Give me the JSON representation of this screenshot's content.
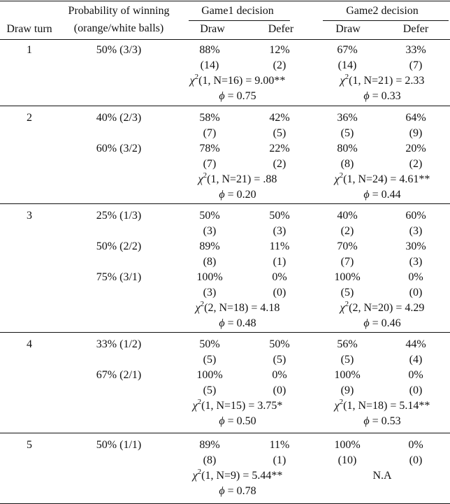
{
  "headers": {
    "draw_turn": "Draw turn",
    "prob_line1": "Probability of winning",
    "prob_line2": "(orange/white balls)",
    "game1": "Game1 decision",
    "game2": "Game2 decision",
    "draw": "Draw",
    "defer": "Defer"
  },
  "turns": [
    {
      "turn": "1",
      "rows": [
        {
          "prob": "50% (3/3)",
          "g1": [
            "88%",
            "12%",
            "(14)",
            "(2)"
          ],
          "g2": [
            "67%",
            "33%",
            "(14)",
            "(7)"
          ]
        }
      ],
      "g1_chi": {
        "df": "1",
        "n": "N=16",
        "val": "9.00**"
      },
      "g1_phi": "0.75",
      "g2_chi": {
        "df": "1",
        "n": "N=21",
        "val": "2.33"
      },
      "g2_phi": "0.33"
    },
    {
      "turn": "2",
      "rows": [
        {
          "prob": "40% (2/3)",
          "g1": [
            "58%",
            "42%",
            "(7)",
            "(5)"
          ],
          "g2": [
            "36%",
            "64%",
            "(5)",
            "(9)"
          ]
        },
        {
          "prob": "60% (3/2)",
          "g1": [
            "78%",
            "22%",
            "(7)",
            "(2)"
          ],
          "g2": [
            "80%",
            "20%",
            "(8)",
            "(2)"
          ]
        }
      ],
      "g1_chi": {
        "df": "1",
        "n": "N=21",
        "val": ".88"
      },
      "g1_phi": "0.20",
      "g2_chi": {
        "df": "1",
        "n": "N=24",
        "val": "4.61**"
      },
      "g2_phi": "0.44"
    },
    {
      "turn": "3",
      "rows": [
        {
          "prob": "25% (1/3)",
          "g1": [
            "50%",
            "50%",
            "(3)",
            "(3)"
          ],
          "g2": [
            "40%",
            "60%",
            "(2)",
            "(3)"
          ]
        },
        {
          "prob": "50% (2/2)",
          "g1": [
            "89%",
            "11%",
            "(8)",
            "(1)"
          ],
          "g2": [
            "70%",
            "30%",
            "(7)",
            "(3)"
          ]
        },
        {
          "prob": "75% (3/1)",
          "g1": [
            "100%",
            "0%",
            "(3)",
            "(0)"
          ],
          "g2": [
            "100%",
            "0%",
            "(5)",
            "(0)"
          ]
        }
      ],
      "g1_chi": {
        "df": "2",
        "n": "N=18",
        "val": "4.18"
      },
      "g1_phi": "0.48",
      "g2_chi": {
        "df": "2",
        "n": "N=20",
        "val": "4.29"
      },
      "g2_phi": "0.46"
    },
    {
      "turn": "4",
      "rows": [
        {
          "prob": "33% (1/2)",
          "g1": [
            "50%",
            "50%",
            "(5)",
            "(5)"
          ],
          "g2": [
            "56%",
            "44%",
            "(5)",
            "(4)"
          ]
        },
        {
          "prob": "67% (2/1)",
          "g1": [
            "100%",
            "0%",
            "(5)",
            "(0)"
          ],
          "g2": [
            "100%",
            "0%",
            "(9)",
            "(0)"
          ]
        }
      ],
      "g1_chi": {
        "df": "1",
        "n": "N=15",
        "val": "3.75*"
      },
      "g1_phi": "0.50",
      "g2_chi": {
        "df": "1",
        "n": "N=18",
        "val": "5.14**"
      },
      "g2_phi": "0.53"
    },
    {
      "turn": "5",
      "rows": [
        {
          "prob": "50% (1/1)",
          "g1": [
            "89%",
            "11%",
            "(8)",
            "(1)"
          ],
          "g2": [
            "100%",
            "0%",
            "(10)",
            "(0)"
          ]
        }
      ],
      "g1_chi": {
        "df": "1",
        "n": "N=9",
        "val": "5.44**"
      },
      "g1_phi": "0.78",
      "g2_na": "N.A"
    }
  ]
}
